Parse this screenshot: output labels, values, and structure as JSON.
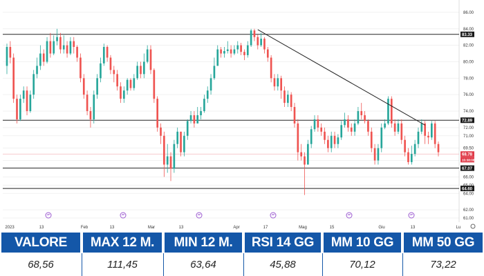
{
  "chart_data": {
    "type": "candlestick",
    "y_axis_position": "right",
    "ylim": [
      60.5,
      87
    ],
    "y_ticks": [
      "86.00",
      "84.00",
      "82.00",
      "80.00",
      "78.00",
      "76.00",
      "74.00",
      "72.00",
      "71.00",
      "69.50",
      "68.00",
      "66.00",
      "65.00",
      "64.00",
      "62.00",
      "61.00"
    ],
    "y_tick_values": [
      86,
      84,
      82,
      80,
      78,
      76,
      74,
      72,
      71,
      69.5,
      68,
      66,
      65,
      64,
      62,
      61
    ],
    "x_labels": [
      "2023",
      "13",
      "Feb",
      "13",
      "Mar",
      "13",
      "Apr",
      "17",
      "Mag",
      "15",
      "Giu",
      "13",
      "Lu"
    ],
    "price_tags": [
      {
        "label": "83.33",
        "value": 83.33,
        "bg": "#1a1a1a"
      },
      {
        "label": "72.89",
        "value": 72.89,
        "bg": "#1a1a1a"
      },
      {
        "label": "68.78",
        "value": 68.78,
        "bg": "#e03c4a"
      },
      {
        "label": "15:38:08",
        "value": 68.1,
        "bg": "#e03c4a"
      },
      {
        "label": "67.07",
        "value": 67.07,
        "bg": "#1a1a1a"
      },
      {
        "label": "64.60",
        "value": 64.6,
        "bg": "#1a1a1a"
      }
    ],
    "horizontal_levels": [
      83.33,
      72.89,
      67.07,
      64.6
    ],
    "trendline": {
      "from": {
        "index": 75,
        "value": 83.9
      },
      "to": {
        "index": 125,
        "value": 72.3
      }
    },
    "candles": [
      [
        79.5,
        81.8,
        82.2,
        78.5
      ],
      [
        81.8,
        80.5,
        82.5,
        79.8
      ],
      [
        80.5,
        75.5,
        81,
        75
      ],
      [
        75.5,
        73,
        76,
        72.5
      ],
      [
        73,
        75.5,
        76,
        72.8
      ],
      [
        75.5,
        76.5,
        77,
        75
      ],
      [
        76.5,
        74,
        77,
        73.5
      ],
      [
        74,
        76,
        76.5,
        73.8
      ],
      [
        76,
        78.5,
        79,
        75.5
      ],
      [
        78.5,
        79.5,
        80.5,
        78
      ],
      [
        79.5,
        81,
        82,
        79
      ],
      [
        81,
        80,
        81.5,
        79.5
      ],
      [
        80,
        82.5,
        83,
        79.8
      ],
      [
        82.5,
        81,
        83.5,
        80.5
      ],
      [
        81,
        82.5,
        83.2,
        80.8
      ],
      [
        82.5,
        83,
        84,
        82
      ],
      [
        83,
        81.5,
        83.5,
        81
      ],
      [
        81.5,
        82,
        83.2,
        81
      ],
      [
        82,
        81,
        82.5,
        80.5
      ],
      [
        81,
        82.5,
        83,
        80.8
      ],
      [
        82.5,
        81.8,
        83,
        81
      ],
      [
        81.8,
        80.5,
        82,
        80
      ],
      [
        80.5,
        78,
        81,
        77.5
      ],
      [
        78,
        76,
        78.5,
        75.5
      ],
      [
        76,
        74,
        76.5,
        73.5
      ],
      [
        74,
        73,
        74.5,
        72
      ],
      [
        73,
        76,
        76.5,
        72.5
      ],
      [
        76,
        78,
        78.5,
        75.5
      ],
      [
        78,
        79.8,
        80.5,
        77.5
      ],
      [
        79.8,
        81.8,
        82.2,
        79.5
      ],
      [
        81.8,
        80.5,
        82,
        80
      ],
      [
        80.5,
        79,
        80.8,
        78.5
      ],
      [
        79,
        78.5,
        79.5,
        77.5
      ],
      [
        78.5,
        77,
        79,
        76.5
      ],
      [
        77,
        75.5,
        77.5,
        75
      ],
      [
        75.5,
        76.5,
        77,
        75
      ],
      [
        76.5,
        77.8,
        78,
        76
      ],
      [
        77.8,
        76.8,
        78,
        76.5
      ],
      [
        76.8,
        78,
        78.5,
        76.5
      ],
      [
        78,
        79.5,
        80,
        77.8
      ],
      [
        79.5,
        78.5,
        80,
        78
      ],
      [
        78.5,
        80,
        81,
        78
      ],
      [
        80,
        81.5,
        82,
        79.8
      ],
      [
        81.5,
        79,
        82,
        78.5
      ],
      [
        79,
        75.5,
        79.2,
        75
      ],
      [
        75.5,
        72,
        75.8,
        71.5
      ],
      [
        72,
        71,
        72.5,
        70
      ],
      [
        71,
        67.5,
        71.5,
        66
      ],
      [
        67.5,
        68.5,
        70,
        66.5
      ],
      [
        68.5,
        67,
        69,
        65.5
      ],
      [
        67,
        70,
        70.5,
        66.5
      ],
      [
        70,
        71.5,
        72,
        69.5
      ],
      [
        71.5,
        69,
        71.5,
        68.5
      ],
      [
        69,
        71,
        71.5,
        68.5
      ],
      [
        71,
        72.8,
        73,
        70.5
      ],
      [
        72.8,
        73.5,
        74,
        72.5
      ],
      [
        73.5,
        72.5,
        74,
        72
      ],
      [
        72.5,
        73.5,
        74.5,
        72.5
      ],
      [
        73.5,
        74,
        74.5,
        73
      ],
      [
        74,
        75.5,
        76,
        73.8
      ],
      [
        75.5,
        76.5,
        77,
        75
      ],
      [
        76.5,
        78,
        78.5,
        76
      ],
      [
        78,
        79.5,
        80.5,
        77.8
      ],
      [
        79.5,
        81.5,
        82,
        79.5
      ],
      [
        81.5,
        81,
        81.8,
        80.5
      ],
      [
        81,
        81.3,
        81.8,
        80.5
      ],
      [
        81.3,
        81.5,
        82.5,
        81
      ],
      [
        81.5,
        81,
        82,
        80.5
      ],
      [
        81,
        81.5,
        82,
        80.8
      ],
      [
        81.5,
        82,
        82.5,
        81
      ],
      [
        82,
        81.2,
        82.3,
        80.8
      ],
      [
        81.2,
        80.8,
        81.5,
        80.2
      ],
      [
        80.8,
        82,
        82.5,
        80.5
      ],
      [
        82,
        83.8,
        84,
        81.8
      ],
      [
        83.8,
        83,
        84,
        82.5
      ],
      [
        83,
        82,
        83.3,
        81.5
      ],
      [
        82,
        82.8,
        83.5,
        81.8
      ],
      [
        82.8,
        81.5,
        83,
        81
      ],
      [
        81.5,
        80.5,
        81.8,
        80
      ],
      [
        80.5,
        78,
        80.8,
        77.5
      ],
      [
        78,
        77,
        78.5,
        76.5
      ],
      [
        77,
        78,
        78.5,
        76.5
      ],
      [
        78,
        76.5,
        78.3,
        75.5
      ],
      [
        76.5,
        75,
        77,
        74.5
      ],
      [
        75,
        76,
        76.5,
        74.5
      ],
      [
        76,
        74.5,
        76.3,
        74
      ],
      [
        74.5,
        72.5,
        75,
        72
      ],
      [
        72.5,
        69,
        73,
        68
      ],
      [
        69,
        68.5,
        70,
        68
      ],
      [
        68.5,
        67.5,
        69,
        63.8
      ],
      [
        67.5,
        70,
        70.5,
        67.5
      ],
      [
        70,
        71.8,
        72.2,
        69.5
      ],
      [
        71.8,
        73,
        73.5,
        71.5
      ],
      [
        73,
        72,
        73.5,
        71.5
      ],
      [
        72,
        71.5,
        72.5,
        71
      ],
      [
        71.5,
        70.5,
        72,
        70
      ],
      [
        70.5,
        69.5,
        71,
        69
      ],
      [
        69.5,
        71,
        71.5,
        69
      ],
      [
        71,
        70,
        71.5,
        69.5
      ],
      [
        70,
        70.8,
        71.2,
        69.5
      ],
      [
        70.8,
        72.3,
        72.8,
        70.5
      ],
      [
        72.3,
        73,
        73.8,
        72
      ],
      [
        73,
        72,
        73.5,
        71.5
      ],
      [
        72,
        71.5,
        72.5,
        71
      ],
      [
        71.5,
        72.5,
        73,
        71
      ],
      [
        72.5,
        74,
        74.5,
        72.3
      ],
      [
        74,
        73.5,
        75,
        73
      ],
      [
        73.5,
        72.8,
        74,
        72.5
      ],
      [
        72.8,
        71.5,
        73,
        71
      ],
      [
        71.5,
        69.5,
        72,
        69
      ],
      [
        69.5,
        68,
        70,
        67.5
      ],
      [
        68,
        69.5,
        70,
        67.5
      ],
      [
        69.5,
        72,
        72.5,
        69
      ],
      [
        72,
        72.5,
        73,
        71.8
      ],
      [
        72.5,
        75.5,
        75.8,
        72.3
      ],
      [
        75.5,
        72.5,
        75.8,
        72
      ],
      [
        72.5,
        71.5,
        73,
        71
      ],
      [
        71.5,
        72.5,
        73,
        71.2
      ],
      [
        72.5,
        70.5,
        73,
        70
      ],
      [
        70.5,
        69,
        71,
        68.5
      ],
      [
        69,
        67.8,
        69.5,
        67.5
      ],
      [
        67.8,
        68.8,
        69.8,
        67.5
      ],
      [
        68.8,
        70,
        70.5,
        68.5
      ],
      [
        70,
        71.5,
        72,
        69.5
      ],
      [
        71.5,
        72.5,
        73,
        71.2
      ],
      [
        72.5,
        71,
        72.8,
        70
      ],
      [
        71,
        70.8,
        71.5,
        70
      ],
      [
        70.8,
        72.5,
        72.8,
        70.5
      ],
      [
        72.5,
        70,
        72.8,
        69.5
      ],
      [
        70,
        69,
        70.3,
        68.5
      ]
    ]
  },
  "stats": {
    "headers": [
      "VALORE",
      "MAX 12 M.",
      "MIN 12 M.",
      "RSI 14 GG",
      "MM 10 GG",
      "MM 50 GG"
    ],
    "values": [
      "68,56",
      "111,45",
      "63,64",
      "45,88",
      "70,12",
      "73,22"
    ]
  },
  "colors": {
    "up": "#26a69a",
    "down": "#ef5350",
    "header_bg": "#1457a8",
    "marker": "#9b59d0"
  }
}
